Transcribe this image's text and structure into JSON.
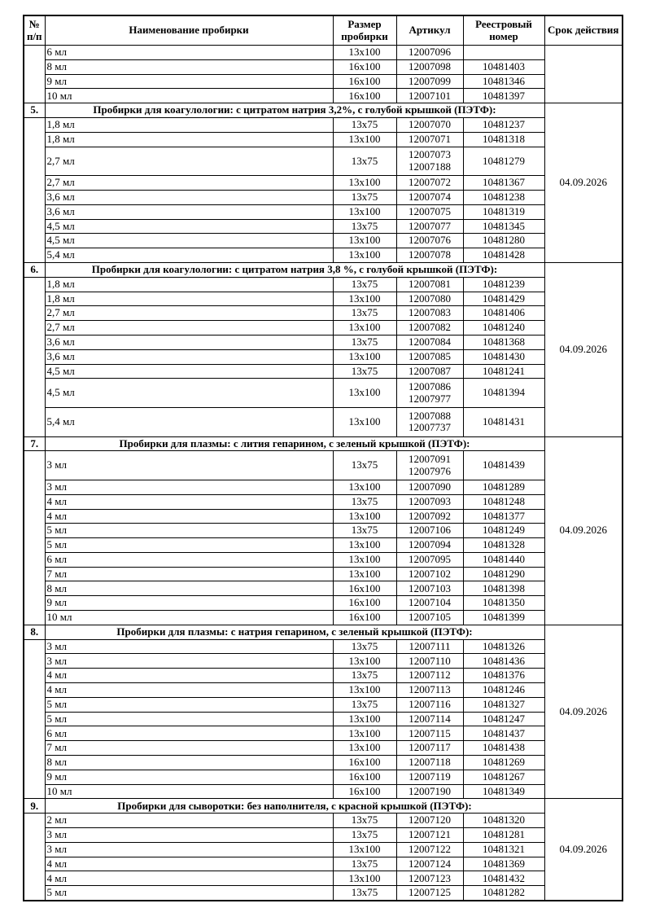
{
  "columns": {
    "num": "№ п/п",
    "name": "Наименование пробирки",
    "size": "Размер пробирки",
    "article": "Артикул",
    "registry": "Реестровый номер",
    "validity": "Срок действия"
  },
  "sections": [
    {
      "number": "",
      "title": "",
      "validity": "",
      "rows": [
        {
          "name": "6 мл",
          "size": "13x100",
          "articles": [
            "12007096"
          ],
          "registry": ""
        },
        {
          "name": "8 мл",
          "size": "16x100",
          "articles": [
            "12007098"
          ],
          "registry": "10481403"
        },
        {
          "name": "9 мл",
          "size": "16x100",
          "articles": [
            "12007099"
          ],
          "registry": "10481346"
        },
        {
          "name": "10 мл",
          "size": "16x100",
          "articles": [
            "12007101"
          ],
          "registry": "10481397"
        }
      ]
    },
    {
      "number": "5.",
      "title": "Пробирки для коагулологии: с цитратом натрия 3,2%, с голубой крышкой (ПЭТФ):",
      "validity": "04.09.2026",
      "rows": [
        {
          "name": "1,8 мл",
          "size": "13x75",
          "articles": [
            "12007070"
          ],
          "registry": "10481237"
        },
        {
          "name": "1,8 мл",
          "size": "13x100",
          "articles": [
            "12007071"
          ],
          "registry": "10481318"
        },
        {
          "name": "2,7 мл",
          "size": "13x75",
          "articles": [
            "12007073",
            "12007188"
          ],
          "registry": "10481279"
        },
        {
          "name": "2,7 мл",
          "size": "13x100",
          "articles": [
            "12007072"
          ],
          "registry": "10481367"
        },
        {
          "name": "3,6 мл",
          "size": "13x75",
          "articles": [
            "12007074"
          ],
          "registry": "10481238"
        },
        {
          "name": "3,6 мл",
          "size": "13x100",
          "articles": [
            "12007075"
          ],
          "registry": "10481319"
        },
        {
          "name": "4,5 мл",
          "size": "13x75",
          "articles": [
            "12007077"
          ],
          "registry": "10481345"
        },
        {
          "name": "4,5 мл",
          "size": "13x100",
          "articles": [
            "12007076"
          ],
          "registry": "10481280"
        },
        {
          "name": "5,4 мл",
          "size": "13x100",
          "articles": [
            "12007078"
          ],
          "registry": "10481428"
        }
      ]
    },
    {
      "number": "6.",
      "title": "Пробирки для коагулологии: с цитратом натрия 3,8 %, с голубой крышкой (ПЭТФ):",
      "validity": "04.09.2026",
      "rows": [
        {
          "name": "1,8 мл",
          "size": "13x75",
          "articles": [
            "12007081"
          ],
          "registry": "10481239"
        },
        {
          "name": "1,8 мл",
          "size": "13x100",
          "articles": [
            "12007080"
          ],
          "registry": "10481429"
        },
        {
          "name": "2,7 мл",
          "size": "13x75",
          "articles": [
            "12007083"
          ],
          "registry": "10481406"
        },
        {
          "name": "2,7 мл",
          "size": "13x100",
          "articles": [
            "12007082"
          ],
          "registry": "10481240"
        },
        {
          "name": "3,6 мл",
          "size": "13x75",
          "articles": [
            "12007084"
          ],
          "registry": "10481368"
        },
        {
          "name": "3,6 мл",
          "size": "13x100",
          "articles": [
            "12007085"
          ],
          "registry": "10481430"
        },
        {
          "name": "4,5 мл",
          "size": "13x75",
          "articles": [
            "12007087"
          ],
          "registry": "10481241"
        },
        {
          "name": "4,5 мл",
          "size": "13x100",
          "articles": [
            "12007086",
            "12007977"
          ],
          "registry": "10481394"
        },
        {
          "name": "5,4 мл",
          "size": "13x100",
          "articles": [
            "12007088",
            "12007737"
          ],
          "registry": "10481431"
        }
      ]
    },
    {
      "number": "7.",
      "title": "Пробирки для плазмы: с лития гепарином, с зеленый крышкой (ПЭТФ):",
      "validity": "04.09.2026",
      "rows": [
        {
          "name": "3 мл",
          "size": "13x75",
          "articles": [
            "12007091",
            "12007976"
          ],
          "registry": "10481439"
        },
        {
          "name": "3 мл",
          "size": "13x100",
          "articles": [
            "12007090"
          ],
          "registry": "10481289"
        },
        {
          "name": "4 мл",
          "size": "13x75",
          "articles": [
            "12007093"
          ],
          "registry": "10481248"
        },
        {
          "name": "4 мл",
          "size": "13x100",
          "articles": [
            "12007092"
          ],
          "registry": "10481377"
        },
        {
          "name": "5 мл",
          "size": "13x75",
          "articles": [
            "12007106"
          ],
          "registry": "10481249"
        },
        {
          "name": "5 мл",
          "size": "13x100",
          "articles": [
            "12007094"
          ],
          "registry": "10481328"
        },
        {
          "name": "6 мл",
          "size": "13x100",
          "articles": [
            "12007095"
          ],
          "registry": "10481440"
        },
        {
          "name": "7 мл",
          "size": "13x100",
          "articles": [
            "12007102"
          ],
          "registry": "10481290"
        },
        {
          "name": "8 мл",
          "size": "16x100",
          "articles": [
            "12007103"
          ],
          "registry": "10481398"
        },
        {
          "name": "9 мл",
          "size": "16x100",
          "articles": [
            "12007104"
          ],
          "registry": "10481350"
        },
        {
          "name": "10 мл",
          "size": "16x100",
          "articles": [
            "12007105"
          ],
          "registry": "10481399"
        }
      ]
    },
    {
      "number": "8.",
      "title": "Пробирки для плазмы: с натрия гепарином, с зеленый крышкой (ПЭТФ):",
      "validity": "04.09.2026",
      "rows": [
        {
          "name": "3 мл",
          "size": "13x75",
          "articles": [
            "12007111"
          ],
          "registry": "10481326"
        },
        {
          "name": "3 мл",
          "size": "13x100",
          "articles": [
            "12007110"
          ],
          "registry": "10481436"
        },
        {
          "name": "4 мл",
          "size": "13x75",
          "articles": [
            "12007112"
          ],
          "registry": "10481376"
        },
        {
          "name": "4 мл",
          "size": "13x100",
          "articles": [
            "12007113"
          ],
          "registry": "10481246"
        },
        {
          "name": "5 мл",
          "size": "13x75",
          "articles": [
            "12007116"
          ],
          "registry": "10481327"
        },
        {
          "name": "5 мл",
          "size": "13x100",
          "articles": [
            "12007114"
          ],
          "registry": "10481247"
        },
        {
          "name": "6 мл",
          "size": "13x100",
          "articles": [
            "12007115"
          ],
          "registry": "10481437"
        },
        {
          "name": "7 мл",
          "size": "13x100",
          "articles": [
            "12007117"
          ],
          "registry": "10481438"
        },
        {
          "name": "8 мл",
          "size": "16x100",
          "articles": [
            "12007118"
          ],
          "registry": "10481269"
        },
        {
          "name": "9 мл",
          "size": "16x100",
          "articles": [
            "12007119"
          ],
          "registry": "10481267"
        },
        {
          "name": "10 мл",
          "size": "16x100",
          "articles": [
            "12007190"
          ],
          "registry": "10481349"
        }
      ]
    },
    {
      "number": "9.",
      "title": "Пробирки для сыворотки: без наполнителя, с красной крышкой (ПЭТФ):",
      "validity": "04.09.2026",
      "rows": [
        {
          "name": "2 мл",
          "size": "13x75",
          "articles": [
            "12007120"
          ],
          "registry": "10481320"
        },
        {
          "name": "3 мл",
          "size": "13x75",
          "articles": [
            "12007121"
          ],
          "registry": "10481281"
        },
        {
          "name": "3 мл",
          "size": "13x100",
          "articles": [
            "12007122"
          ],
          "registry": "10481321"
        },
        {
          "name": "4 мл",
          "size": "13x75",
          "articles": [
            "12007124"
          ],
          "registry": "10481369"
        },
        {
          "name": "4 мл",
          "size": "13x100",
          "articles": [
            "12007123"
          ],
          "registry": "10481432"
        },
        {
          "name": "5 мл",
          "size": "13x75",
          "articles": [
            "12007125"
          ],
          "registry": "10481282"
        }
      ]
    }
  ]
}
